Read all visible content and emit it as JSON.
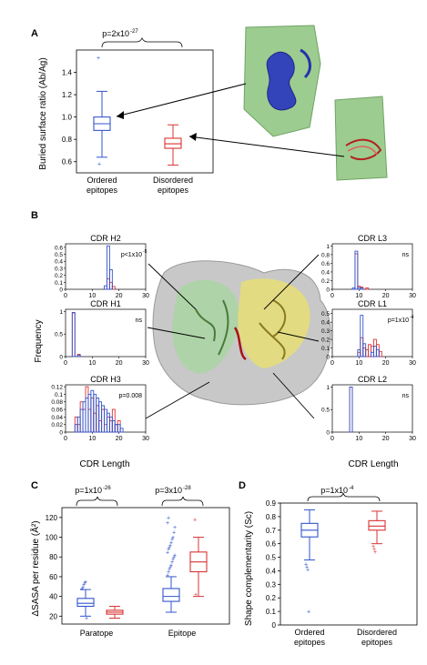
{
  "panels": {
    "A": {
      "letter": "A",
      "ylabel": "Buried surface ratio (Ab/Ag)",
      "pvalue": {
        "base": "p=2x10",
        "exp": "-27"
      },
      "categories": [
        {
          "line1": "Ordered",
          "line2": "epitopes"
        },
        {
          "line1": "Disordered",
          "line2": "epitopes"
        }
      ],
      "yticks": [
        "1.4",
        "1.2",
        "1.0",
        "0.8",
        "0.6"
      ]
    },
    "B": {
      "letter": "B",
      "ylabel": "Frequency",
      "xlabel_left": "CDR Length",
      "xlabel_right": "CDR Length",
      "subplots": [
        {
          "title": "CDR H2",
          "annotation": "p<1x10",
          "annotation_exp": "-5"
        },
        {
          "title": "CDR H1",
          "annotation": "ns",
          "annotation_exp": ""
        },
        {
          "title": "CDR H3",
          "annotation": "p=0.008",
          "annotation_exp": ""
        },
        {
          "title": "CDR L3",
          "annotation": "ns",
          "annotation_exp": ""
        },
        {
          "title": "CDR L1",
          "annotation": "p=1x10",
          "annotation_exp": "-4"
        },
        {
          "title": "CDR L2",
          "annotation": "ns",
          "annotation_exp": ""
        }
      ]
    },
    "C": {
      "letter": "C",
      "ylabel": "ΔSASA per residue (Å²)",
      "pvalues": [
        {
          "base": "p=1x10",
          "exp": "-26"
        },
        {
          "base": "p=3x10",
          "exp": "-28"
        }
      ],
      "categories": [
        "Paratope",
        "Epitope"
      ],
      "yticks": [
        "120",
        "100",
        "80",
        "60",
        "40",
        "20"
      ]
    },
    "D": {
      "letter": "D",
      "ylabel": "Shape complementarity (Sc)",
      "pvalue": {
        "base": "p=1x10",
        "exp": "-4"
      },
      "categories": [
        {
          "line1": "Ordered",
          "line2": "epitopes"
        },
        {
          "line1": "Disordered",
          "line2": "epitopes"
        }
      ],
      "yticks": [
        "0.9",
        "0.8",
        "0.7",
        "0.6",
        "0.5",
        "0.4",
        "0.3",
        "0.2",
        "0.1",
        "0"
      ]
    }
  },
  "chart_data": [
    {
      "type": "box",
      "panel": "A",
      "categories": [
        "Ordered epitopes",
        "Disordered epitopes"
      ],
      "ylabel": "Buried surface ratio (Ab/Ag)",
      "ylim": [
        0.5,
        1.6
      ],
      "series": [
        {
          "category": "Ordered epitopes",
          "color": "#3355cc",
          "whisker_low": 0.64,
          "q1": 0.88,
          "median": 0.94,
          "q3": 1.0,
          "whisker_high": 1.23,
          "outliers": [
            1.53,
            0.58
          ]
        },
        {
          "category": "Disordered epitopes",
          "color": "#d93333",
          "whisker_low": 0.57,
          "q1": 0.72,
          "median": 0.76,
          "q3": 0.81,
          "whisker_high": 0.93,
          "outliers": []
        }
      ]
    },
    {
      "type": "histogram",
      "panel": "B",
      "subplots": [
        {
          "title": "CDR H2",
          "xlim": [
            0,
            30
          ],
          "ylim": [
            0,
            0.65
          ],
          "yticks": [
            "0.6",
            "0.5",
            "0.4",
            "0.3",
            "0.2",
            "0.1",
            "0"
          ],
          "xticks": [
            "0",
            "10",
            "20",
            "30"
          ],
          "blue": [
            [
              15,
              0.05
            ],
            [
              16,
              0.62
            ],
            [
              17,
              0.28
            ]
          ],
          "red": [
            [
              16,
              0.15
            ],
            [
              17,
              0.1
            ],
            [
              18,
              0.04
            ]
          ]
        },
        {
          "title": "CDR H1",
          "xlim": [
            0,
            30
          ],
          "ylim": [
            0,
            1.05
          ],
          "yticks": [
            "1",
            "0.5",
            "0"
          ],
          "xticks": [
            "0",
            "10",
            "20",
            "30"
          ],
          "blue": [
            [
              3,
              0.98
            ],
            [
              5,
              0.03
            ]
          ],
          "red": [
            [
              3,
              0.97
            ],
            [
              5,
              0.05
            ]
          ]
        },
        {
          "title": "CDR H3",
          "xlim": [
            0,
            30
          ],
          "ylim": [
            0,
            0.125
          ],
          "yticks": [
            "0.12",
            "0.1",
            "0.08",
            "0.06",
            "0.04",
            "0.02",
            "0"
          ],
          "xticks": [
            "0",
            "10",
            "20",
            "30"
          ],
          "blue": [
            [
              4,
              0.02
            ],
            [
              5,
              0.04
            ],
            [
              6,
              0.06
            ],
            [
              7,
              0.08
            ],
            [
              8,
              0.09
            ],
            [
              9,
              0.1
            ],
            [
              10,
              0.11
            ],
            [
              11,
              0.1
            ],
            [
              12,
              0.09
            ],
            [
              13,
              0.08
            ],
            [
              14,
              0.07
            ],
            [
              15,
              0.06
            ],
            [
              16,
              0.05
            ],
            [
              17,
              0.04
            ],
            [
              18,
              0.03
            ],
            [
              19,
              0.02
            ],
            [
              20,
              0.02
            ],
            [
              21,
              0.01
            ]
          ],
          "red": [
            [
              4,
              0.04
            ],
            [
              5,
              0.02
            ],
            [
              6,
              0.08
            ],
            [
              7,
              0.06
            ],
            [
              8,
              0.12
            ],
            [
              9,
              0.06
            ],
            [
              10,
              0.09
            ],
            [
              11,
              0.05
            ],
            [
              12,
              0.07
            ],
            [
              13,
              0.03
            ],
            [
              14,
              0.06
            ],
            [
              15,
              0.02
            ],
            [
              16,
              0.04
            ],
            [
              17,
              0.03
            ],
            [
              18,
              0.06
            ],
            [
              19,
              0.02
            ],
            [
              20,
              0.03
            ]
          ]
        },
        {
          "title": "CDR L3",
          "xlim": [
            0,
            30
          ],
          "ylim": [
            0,
            1.05
          ],
          "yticks": [
            "1",
            "0.8",
            "0.6",
            "0.4",
            "0.2",
            "0"
          ],
          "xticks": [
            "0",
            "10",
            "20",
            "30"
          ],
          "blue": [
            [
              8,
              0.03
            ],
            [
              9,
              0.88
            ],
            [
              10,
              0.04
            ],
            [
              11,
              0.03
            ]
          ],
          "red": [
            [
              9,
              0.82
            ],
            [
              10,
              0.07
            ],
            [
              11,
              0.05
            ],
            [
              13,
              0.03
            ]
          ]
        },
        {
          "title": "CDR L1",
          "xlim": [
            0,
            30
          ],
          "ylim": [
            0,
            0.55
          ],
          "yticks": [
            "0.5",
            "0.4",
            "0.3",
            "0.2",
            "0.1",
            "0"
          ],
          "xticks": [
            "0",
            "10",
            "20",
            "30"
          ],
          "blue": [
            [
              10,
              0.08
            ],
            [
              11,
              0.48
            ],
            [
              12,
              0.15
            ],
            [
              15,
              0.05
            ],
            [
              16,
              0.12
            ],
            [
              17,
              0.08
            ]
          ],
          "red": [
            [
              10,
              0.05
            ],
            [
              11,
              0.22
            ],
            [
              12,
              0.1
            ],
            [
              13,
              0.08
            ],
            [
              14,
              0.14
            ],
            [
              15,
              0.12
            ],
            [
              16,
              0.2
            ],
            [
              17,
              0.14
            ],
            [
              18,
              0.06
            ]
          ]
        },
        {
          "title": "CDR L2",
          "xlim": [
            0,
            30
          ],
          "ylim": [
            0,
            1.05
          ],
          "yticks": [
            "1",
            "0.5",
            "0"
          ],
          "xticks": [
            "0",
            "10",
            "20",
            "30"
          ],
          "blue": [
            [
              7,
              1.0
            ]
          ],
          "red": [
            [
              7,
              1.0
            ]
          ]
        }
      ]
    },
    {
      "type": "box",
      "panel": "C",
      "categories": [
        "Paratope",
        "Epitope"
      ],
      "ylabel": "ΔSASA per residue (Å²)",
      "ylim": [
        12,
        130
      ],
      "series": [
        {
          "category": "Paratope",
          "color": "#3355cc",
          "whisker_low": 20,
          "q1": 30,
          "median": 33,
          "q3": 38,
          "whisker_high": 47,
          "outliers": [
            48,
            50,
            52,
            54,
            55,
            18
          ]
        },
        {
          "category": "Paratope",
          "color": "#d93333",
          "whisker_low": 18,
          "q1": 22,
          "median": 24,
          "q3": 26,
          "whisker_high": 30,
          "outliers": []
        },
        {
          "category": "Epitope",
          "color": "#3355cc",
          "whisker_low": 24,
          "q1": 35,
          "median": 40,
          "q3": 48,
          "whisker_high": 60,
          "outliers": [
            62,
            65,
            68,
            70,
            72,
            75,
            78,
            80,
            82,
            85,
            88,
            90,
            92,
            95,
            98,
            100,
            105,
            110,
            115,
            120
          ]
        },
        {
          "category": "Epitope",
          "color": "#d93333",
          "whisker_low": 40,
          "q1": 65,
          "median": 75,
          "q3": 85,
          "whisker_high": 100,
          "outliers": [
            118,
            42
          ]
        }
      ]
    },
    {
      "type": "box",
      "panel": "D",
      "categories": [
        "Ordered epitopes",
        "Disordered epitopes"
      ],
      "ylabel": "Shape complementarity (Sc)",
      "ylim": [
        0,
        0.9
      ],
      "series": [
        {
          "category": "Ordered epitopes",
          "color": "#3355cc",
          "whisker_low": 0.48,
          "q1": 0.65,
          "median": 0.7,
          "q3": 0.75,
          "whisker_high": 0.85,
          "outliers": [
            0.45,
            0.43,
            0.41,
            0.1
          ]
        },
        {
          "category": "Disordered epitopes",
          "color": "#d93333",
          "whisker_low": 0.6,
          "q1": 0.7,
          "median": 0.73,
          "q3": 0.77,
          "whisker_high": 0.84,
          "outliers": [
            0.58,
            0.56,
            0.54
          ]
        }
      ]
    }
  ]
}
